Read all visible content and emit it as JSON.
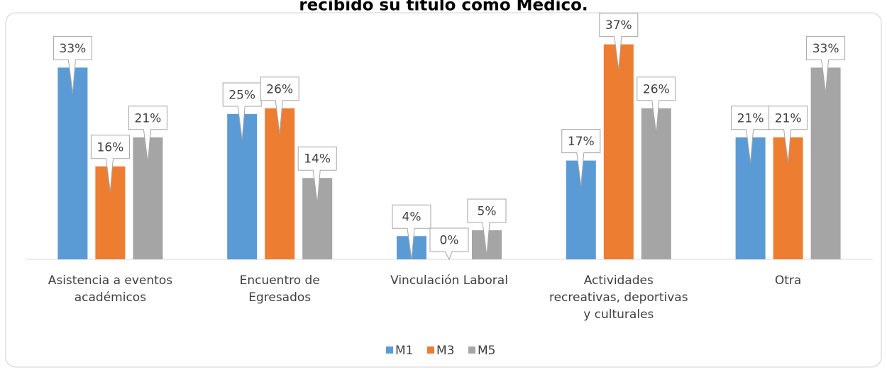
{
  "chart_data": {
    "type": "bar",
    "title": "recibido su título como Médico.",
    "categories": [
      [
        "Asistencia a eventos",
        "académicos"
      ],
      [
        "Encuentro de",
        "Egresados"
      ],
      [
        "Vinculación Laboral"
      ],
      [
        "Actividades",
        "recreativas, deportivas",
        "y culturales"
      ],
      [
        "Otra"
      ]
    ],
    "series": [
      {
        "name": "M1",
        "color": "#5b9bd5",
        "values": [
          33,
          25,
          4,
          17,
          21
        ],
        "value_labels": [
          "33%",
          "25%",
          "4%",
          "17%",
          "21%"
        ]
      },
      {
        "name": "M3",
        "color": "#ed7d31",
        "values": [
          16,
          26,
          0,
          37,
          21
        ],
        "value_labels": [
          "16%",
          "26%",
          "0%",
          "37%",
          "21%"
        ]
      },
      {
        "name": "M5",
        "color": "#a5a5a5",
        "values": [
          21,
          14,
          5,
          26,
          33
        ],
        "value_labels": [
          "21%",
          "14%",
          "5%",
          "26%",
          "33%"
        ]
      }
    ],
    "ylim": [
      0,
      40
    ],
    "legend": "bottom"
  }
}
